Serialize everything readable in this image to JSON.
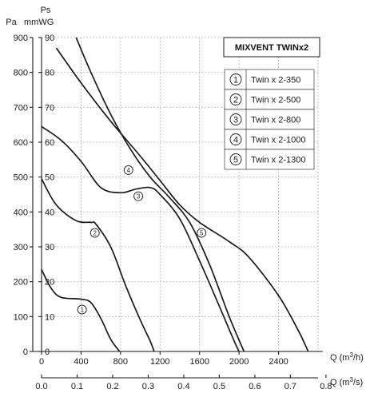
{
  "chart_data": {
    "type": "line",
    "title": "MIXVENT TWINx2",
    "ylabel_top": "Ps",
    "ylabel_pa": "Pa",
    "ylabel_mmwg": "mmWG",
    "xlabel_m3h": "Q (m³/h)",
    "xlabel_m3s": "Q (m³/s)",
    "xlim_m3h": [
      0,
      2800
    ],
    "ylim_pa": [
      0,
      900
    ],
    "ylim_mmwg": [
      0,
      90
    ],
    "grid": true,
    "legend_position": "top-right",
    "x_ticks_m3h": [
      "0",
      "400",
      "800",
      "1200",
      "1600",
      "2000",
      "2400"
    ],
    "x_ticks_m3s": [
      "0.0",
      "0.1",
      "0.2",
      "0.3",
      "0.4",
      "0.5",
      "0.6",
      "0.7",
      "0.8"
    ],
    "y_ticks_pa": [
      "0",
      "100",
      "200",
      "300",
      "400",
      "500",
      "600",
      "700",
      "800",
      "900"
    ],
    "y_ticks_mmwg": [
      "0",
      "10",
      "20",
      "30",
      "40",
      "50",
      "60",
      "70",
      "80",
      "90"
    ],
    "series": [
      {
        "name": "Twin x 2-350",
        "marker": "①",
        "points": [
          [
            0,
            235
          ],
          [
            100,
            180
          ],
          [
            200,
            155
          ],
          [
            400,
            150
          ],
          [
            500,
            140
          ],
          [
            600,
            95
          ],
          [
            700,
            35
          ],
          [
            790,
            0
          ]
        ]
      },
      {
        "name": "Twin x 2-500",
        "marker": "②",
        "points": [
          [
            0,
            495
          ],
          [
            150,
            420
          ],
          [
            350,
            375
          ],
          [
            500,
            370
          ],
          [
            550,
            365
          ],
          [
            700,
            300
          ],
          [
            850,
            190
          ],
          [
            1000,
            90
          ],
          [
            1100,
            30
          ],
          [
            1140,
            0
          ]
        ]
      },
      {
        "name": "Twin x 2-800",
        "marker": "③",
        "points": [
          [
            0,
            645
          ],
          [
            200,
            605
          ],
          [
            400,
            545
          ],
          [
            600,
            470
          ],
          [
            800,
            455
          ],
          [
            950,
            465
          ],
          [
            1100,
            470
          ],
          [
            1200,
            450
          ],
          [
            1400,
            380
          ],
          [
            1600,
            260
          ],
          [
            1800,
            130
          ],
          [
            1950,
            30
          ],
          [
            2000,
            0
          ]
        ]
      },
      {
        "name": "Twin x 2-1000",
        "marker": "④",
        "points": [
          [
            350,
            900
          ],
          [
            500,
            800
          ],
          [
            700,
            680
          ],
          [
            900,
            580
          ],
          [
            1100,
            500
          ],
          [
            1300,
            440
          ],
          [
            1500,
            370
          ],
          [
            1700,
            250
          ],
          [
            1900,
            100
          ],
          [
            2050,
            0
          ]
        ]
      },
      {
        "name": "Twin x 2-1300",
        "marker": "⑤",
        "points": [
          [
            150,
            870
          ],
          [
            400,
            770
          ],
          [
            700,
            660
          ],
          [
            1000,
            560
          ],
          [
            1200,
            490
          ],
          [
            1400,
            420
          ],
          [
            1600,
            370
          ],
          [
            1900,
            315
          ],
          [
            2100,
            270
          ],
          [
            2400,
            160
          ],
          [
            2600,
            60
          ],
          [
            2700,
            0
          ]
        ]
      }
    ],
    "curve_labels": [
      {
        "marker": "①",
        "x": 410,
        "y": 120
      },
      {
        "marker": "②",
        "x": 540,
        "y": 340
      },
      {
        "marker": "③",
        "x": 980,
        "y": 445
      },
      {
        "marker": "④",
        "x": 880,
        "y": 520
      },
      {
        "marker": "⑤",
        "x": 1620,
        "y": 340
      }
    ]
  }
}
